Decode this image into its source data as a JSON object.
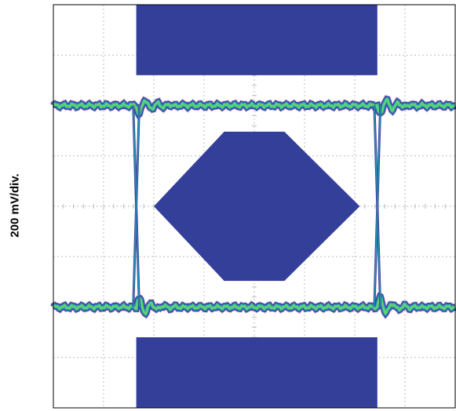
{
  "chart_data": {
    "type": "eye-diagram",
    "title": "",
    "xlabel": "",
    "ylabel": "200 mV/div.",
    "grid": true,
    "grid_divisions": {
      "x": 8,
      "y": 8
    },
    "x_range_div": [
      0,
      8
    ],
    "y_range_div": [
      -4,
      4
    ],
    "y_scale_mV_per_div": 200,
    "levels_div": {
      "high": 2.0,
      "low": -2.0
    },
    "crossing_points_div": [
      1.65,
      6.45
    ],
    "mask": {
      "top_limit_div": [
        [
          1.65,
          4.0
        ],
        [
          6.45,
          4.0
        ],
        [
          6.45,
          2.6
        ],
        [
          1.65,
          2.6
        ]
      ],
      "bottom_limit_div": [
        [
          1.65,
          -2.6
        ],
        [
          6.45,
          -2.6
        ],
        [
          6.45,
          -4.0
        ],
        [
          1.65,
          -4.0
        ]
      ],
      "center_hexagon_div": [
        [
          2.0,
          0.0
        ],
        [
          3.4,
          1.48
        ],
        [
          4.6,
          1.48
        ],
        [
          6.1,
          0.0
        ],
        [
          4.6,
          -1.48
        ],
        [
          3.4,
          -1.48
        ]
      ]
    },
    "colors": {
      "mask": "#343f9a",
      "trace_core": "#66d26e",
      "trace_mid": "#22a3b3",
      "trace_edge": "#3b3f9f",
      "outliers": "#b24aa0",
      "grid": "#bdbdbd"
    }
  }
}
